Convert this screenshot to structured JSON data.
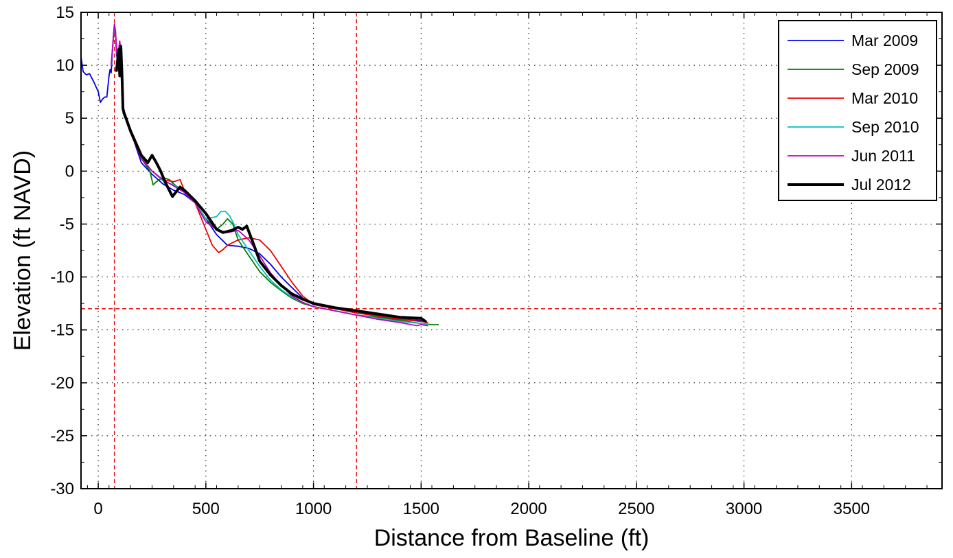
{
  "chart_data": {
    "type": "line",
    "title": "",
    "xlabel": "Distance from Baseline (ft)",
    "ylabel": "Elevation (ft NAVD)",
    "xlim": [
      -80,
      3920
    ],
    "ylim": [
      -30,
      15
    ],
    "xticks": [
      0,
      500,
      1000,
      1500,
      2000,
      2500,
      3000,
      3500
    ],
    "xtick_labels": [
      "0",
      "500",
      "1000",
      "1500",
      "2000",
      "2500",
      "3000",
      "3500"
    ],
    "yticks": [
      15,
      10,
      5,
      0,
      -5,
      -10,
      -15,
      -20,
      -25,
      -30
    ],
    "ytick_labels": [
      "15",
      "10",
      "5",
      "0",
      "-5",
      "-10",
      "-15",
      "-20",
      "-25",
      "-30"
    ],
    "grid": true,
    "legend_position": "top-right",
    "reference_lines": {
      "vertical_x": [
        75,
        1200
      ],
      "horizontal_y": [
        -13
      ],
      "color": "#e00000"
    },
    "series": [
      {
        "name": "Mar 2009",
        "color": "#0000ee",
        "x": [
          -80,
          -70,
          -55,
          -40,
          -20,
          0,
          10,
          20,
          30,
          40,
          50,
          55,
          60,
          65,
          70,
          75,
          80,
          85,
          90,
          100,
          110,
          115,
          120,
          150,
          200,
          250,
          300,
          350,
          400,
          450,
          500,
          550,
          600,
          650,
          700,
          750,
          800,
          850,
          900,
          950,
          1000,
          1100,
          1200,
          1300,
          1400,
          1500,
          1530
        ],
        "y": [
          10.8,
          9.4,
          9.1,
          9.2,
          8.4,
          7.5,
          6.5,
          6.8,
          7.0,
          7.0,
          9.0,
          9.6,
          9.3,
          11.0,
          12.5,
          13.8,
          13.0,
          11.0,
          10.5,
          11.8,
          10.0,
          6.2,
          5.6,
          3.8,
          0.8,
          -0.3,
          -1.2,
          -1.8,
          -2.2,
          -3.0,
          -4.5,
          -6.0,
          -7.0,
          -7.1,
          -7.3,
          -7.8,
          -8.8,
          -10.0,
          -11.0,
          -12.0,
          -12.6,
          -13.0,
          -13.4,
          -13.6,
          -14.0,
          -14.1,
          -14.3
        ]
      },
      {
        "name": "Sep 2009",
        "color": "#007f00",
        "x": [
          115,
          150,
          200,
          240,
          255,
          270,
          300,
          330,
          350,
          400,
          450,
          500,
          550,
          580,
          600,
          625,
          650,
          700,
          750,
          800,
          850,
          900,
          950,
          1000,
          1100,
          1200,
          1300,
          1400,
          1500,
          1550,
          1580
        ],
        "y": [
          5.5,
          3.8,
          1.2,
          0.0,
          -1.3,
          -1.0,
          -0.6,
          -0.8,
          -1.2,
          -2.0,
          -3.0,
          -4.5,
          -5.5,
          -5.0,
          -4.5,
          -5.0,
          -6.5,
          -8.0,
          -9.5,
          -10.5,
          -11.3,
          -12.0,
          -12.5,
          -12.8,
          -13.2,
          -13.6,
          -13.8,
          -14.1,
          -14.4,
          -14.5,
          -14.5
        ]
      },
      {
        "name": "Mar 2010",
        "color": "#ee0000",
        "x": [
          60,
          70,
          75,
          80,
          85,
          90,
          100,
          110,
          115,
          120,
          150,
          200,
          250,
          300,
          350,
          380,
          400,
          450,
          500,
          530,
          560,
          580,
          600,
          650,
          700,
          750,
          800,
          850,
          900,
          950,
          1000,
          1100,
          1200,
          1300,
          1400,
          1500,
          1530
        ],
        "y": [
          10.0,
          12.5,
          13.8,
          13.2,
          11.5,
          10.8,
          12.0,
          10.2,
          5.8,
          5.3,
          3.6,
          1.2,
          0.0,
          -0.8,
          -1.0,
          -0.8,
          -1.8,
          -3.0,
          -5.5,
          -7.0,
          -7.7,
          -7.4,
          -7.0,
          -6.5,
          -6.3,
          -6.5,
          -7.5,
          -9.0,
          -10.5,
          -11.8,
          -12.6,
          -13.0,
          -13.4,
          -13.7,
          -14.0,
          -14.2,
          -14.3
        ]
      },
      {
        "name": "Sep 2010",
        "color": "#00bfbf",
        "x": [
          60,
          70,
          75,
          80,
          85,
          90,
          100,
          110,
          115,
          120,
          150,
          200,
          250,
          300,
          350,
          400,
          450,
          500,
          550,
          570,
          590,
          610,
          630,
          650,
          700,
          750,
          800,
          850,
          900,
          950,
          1000,
          1100,
          1200,
          1300,
          1400,
          1500,
          1530
        ],
        "y": [
          10.0,
          12.4,
          13.7,
          13.2,
          11.4,
          10.7,
          11.8,
          10.0,
          5.9,
          5.4,
          3.8,
          1.3,
          0.0,
          -0.9,
          -1.3,
          -2.0,
          -3.0,
          -4.5,
          -4.3,
          -3.8,
          -3.8,
          -4.2,
          -5.0,
          -6.0,
          -7.5,
          -9.0,
          -10.3,
          -11.2,
          -11.9,
          -12.4,
          -12.8,
          -13.2,
          -13.6,
          -13.9,
          -14.2,
          -14.4,
          -14.5
        ]
      },
      {
        "name": "Jun 2011",
        "color": "#bf00bf",
        "x": [
          60,
          70,
          75,
          80,
          85,
          90,
          100,
          110,
          115,
          120,
          150,
          200,
          250,
          300,
          350,
          400,
          450,
          500,
          550,
          600,
          650,
          700,
          750,
          800,
          850,
          900,
          950,
          1000,
          1100,
          1200,
          1300,
          1400,
          1480,
          1500,
          1530
        ],
        "y": [
          10.0,
          12.6,
          13.9,
          13.3,
          11.5,
          10.8,
          12.3,
          10.2,
          5.9,
          5.3,
          3.8,
          1.2,
          0.0,
          -0.8,
          -1.4,
          -2.0,
          -3.0,
          -4.8,
          -5.5,
          -5.8,
          -5.6,
          -6.5,
          -8.0,
          -9.6,
          -10.8,
          -11.8,
          -12.4,
          -12.8,
          -13.2,
          -13.6,
          -14.0,
          -14.3,
          -14.6,
          -14.5,
          -14.6
        ]
      },
      {
        "name": "Jul 2012",
        "color": "#000000",
        "x": [
          85,
          95,
          100,
          105,
          110,
          115,
          120,
          150,
          200,
          230,
          250,
          270,
          290,
          310,
          330,
          345,
          360,
          380,
          400,
          450,
          500,
          550,
          580,
          620,
          650,
          670,
          690,
          720,
          750,
          800,
          850,
          900,
          950,
          1000,
          1100,
          1200,
          1300,
          1400,
          1500,
          1520
        ],
        "y": [
          9.5,
          11.5,
          9.0,
          11.8,
          9.2,
          5.9,
          5.5,
          3.8,
          1.5,
          0.8,
          1.5,
          0.8,
          0.0,
          -1.0,
          -1.8,
          -2.4,
          -2.0,
          -1.5,
          -1.8,
          -2.8,
          -4.0,
          -5.5,
          -5.8,
          -5.6,
          -5.3,
          -5.5,
          -5.2,
          -6.8,
          -8.5,
          -9.8,
          -10.8,
          -11.6,
          -12.1,
          -12.5,
          -12.9,
          -13.2,
          -13.5,
          -13.8,
          -13.9,
          -14.2
        ]
      }
    ]
  }
}
